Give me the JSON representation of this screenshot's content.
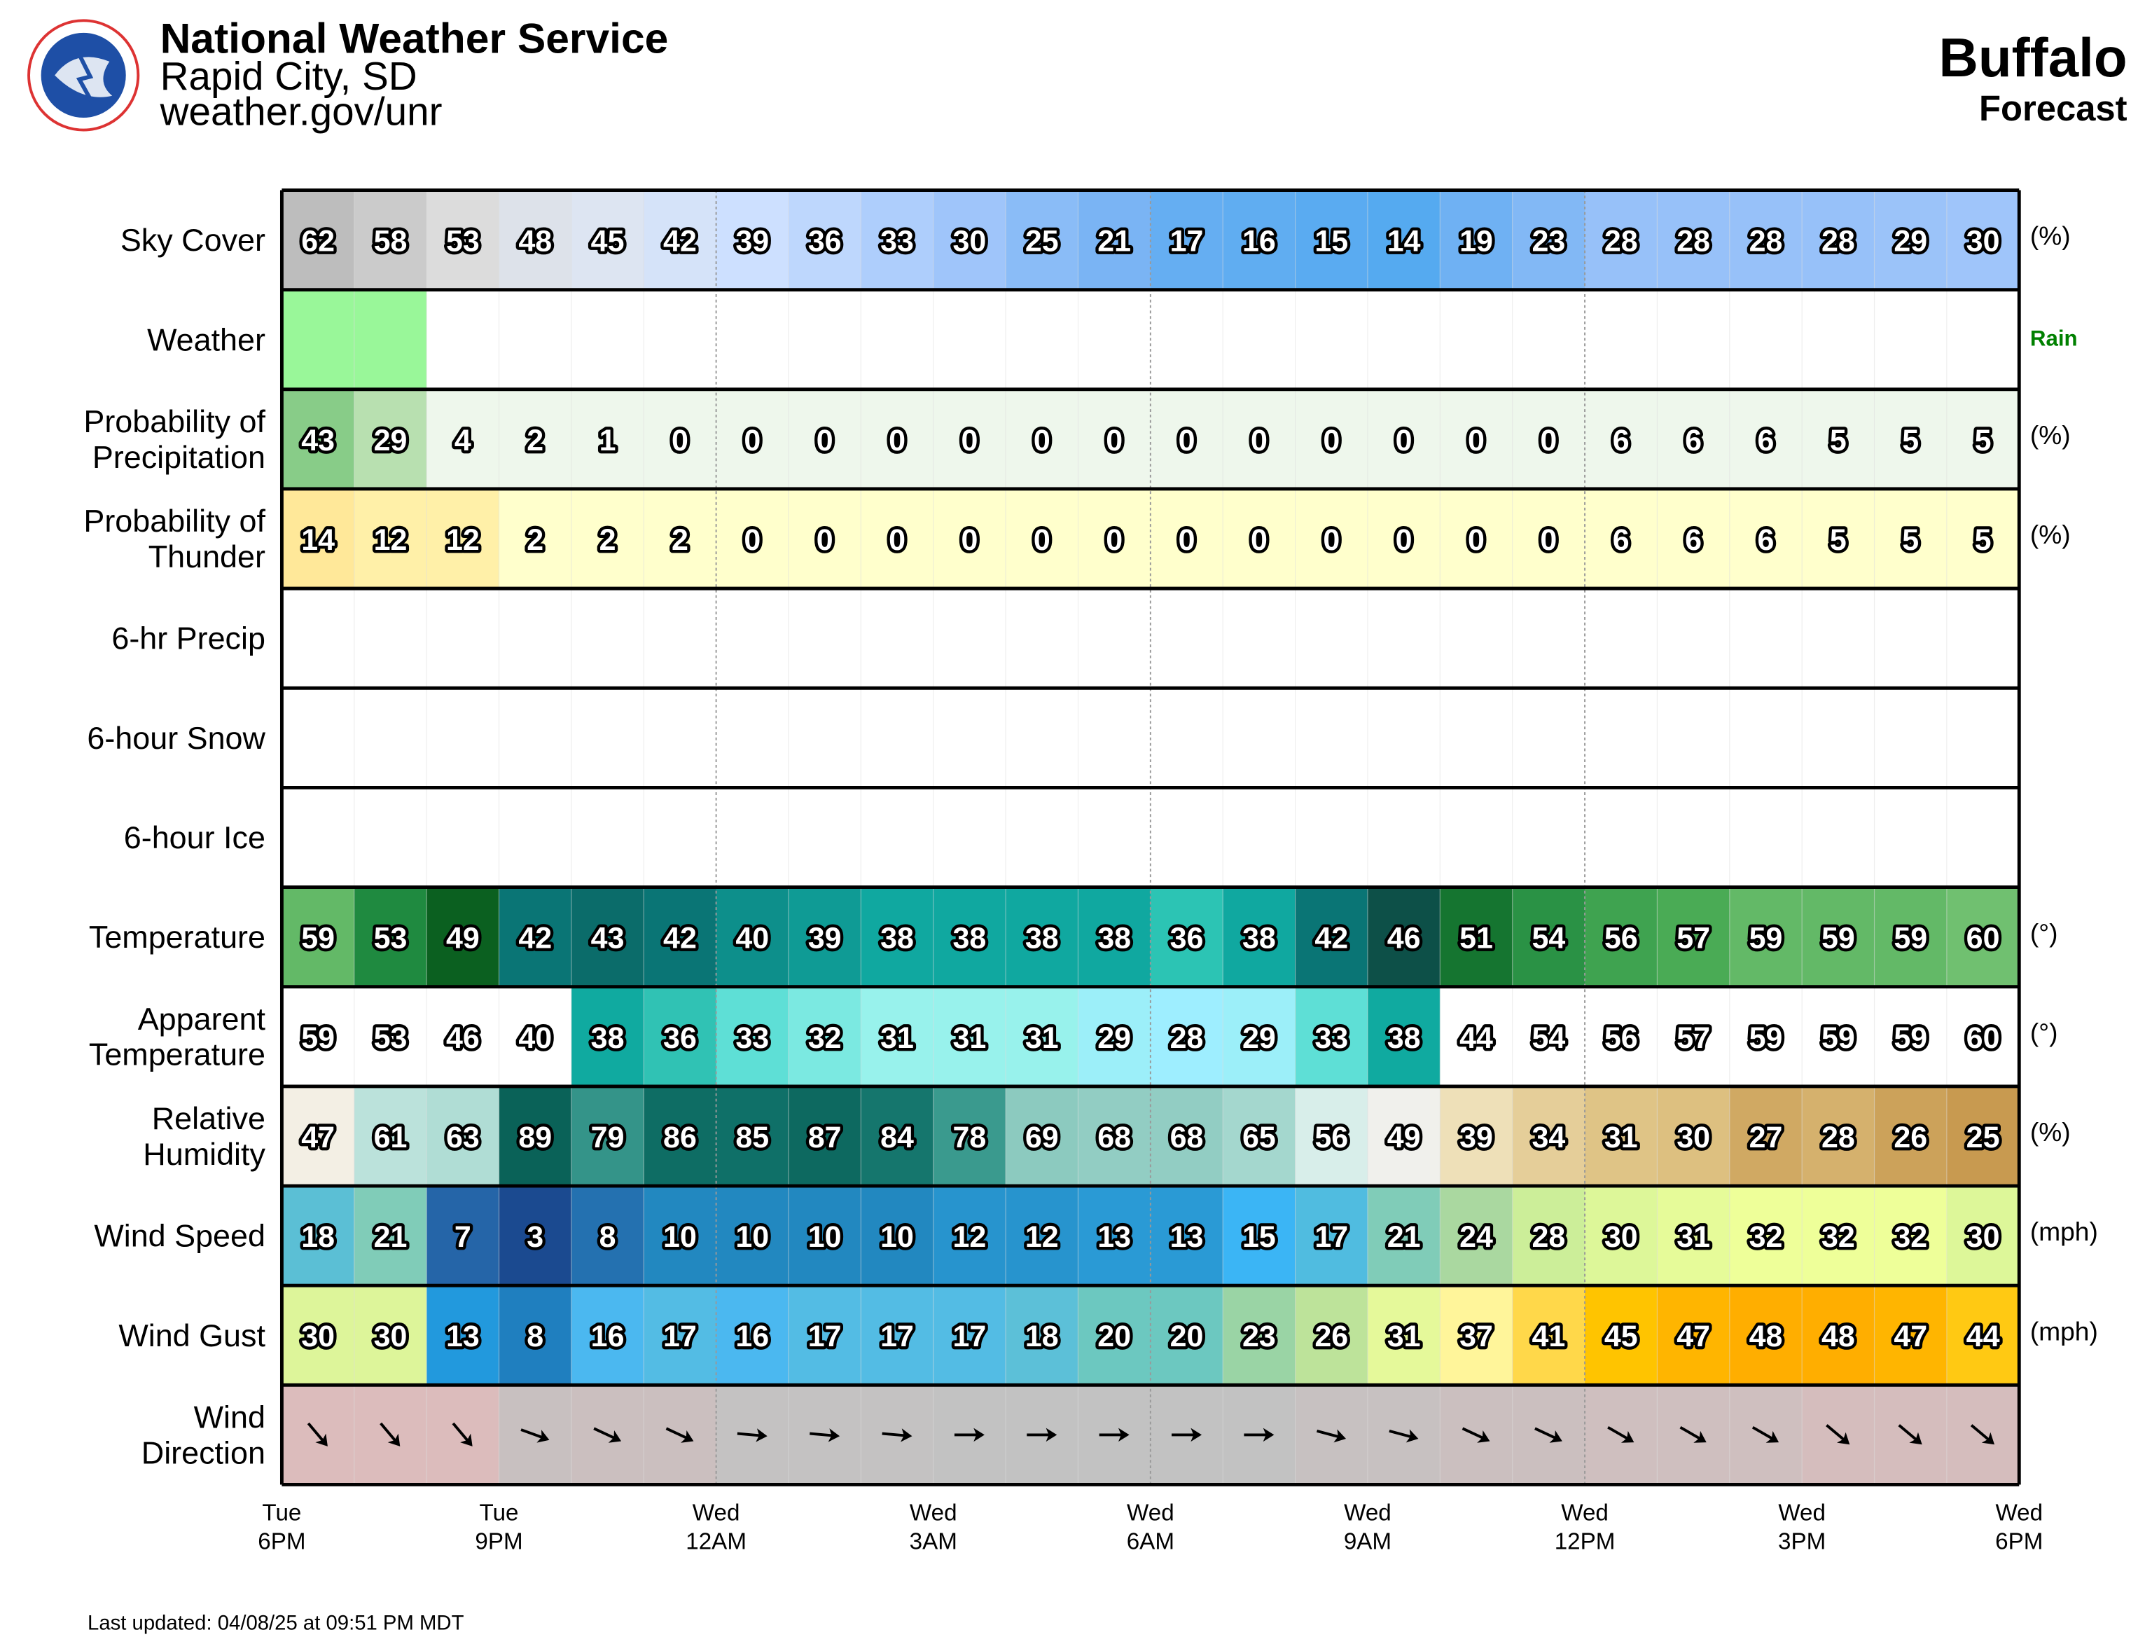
{
  "header": {
    "title": "National Weather Service",
    "office": "Rapid City, SD",
    "url": "weather.gov/unr",
    "location": "Buffalo",
    "subtitle": "Forecast"
  },
  "rows": [
    {
      "label": [
        "Sky Cover"
      ],
      "unit": "(%)",
      "kind": "number",
      "scale": "sky",
      "values": [
        62,
        58,
        53,
        48,
        45,
        42,
        39,
        36,
        33,
        30,
        25,
        21,
        17,
        16,
        15,
        14,
        19,
        23,
        28,
        28,
        28,
        28,
        29,
        30
      ]
    },
    {
      "label": [
        "Weather"
      ],
      "kind": "weather",
      "key": "Rain",
      "key_color": "#008000",
      "cell_color": "#99f799",
      "cells": [
        "Rain",
        "Rain",
        null,
        null,
        null,
        null,
        null,
        null,
        null,
        null,
        null,
        null,
        null,
        null,
        null,
        null,
        null,
        null,
        null,
        null,
        null,
        null,
        null,
        null
      ]
    },
    {
      "label": [
        "Probability of",
        "Precipitation"
      ],
      "unit": "(%)",
      "kind": "number",
      "scale": "pop",
      "values": [
        43,
        29,
        4,
        2,
        1,
        0,
        0,
        0,
        0,
        0,
        0,
        0,
        0,
        0,
        0,
        0,
        0,
        0,
        6,
        6,
        6,
        5,
        5,
        5
      ]
    },
    {
      "label": [
        "Probability of",
        "Thunder"
      ],
      "unit": "(%)",
      "kind": "number",
      "scale": "thunder",
      "values": [
        14,
        12,
        12,
        2,
        2,
        2,
        0,
        0,
        0,
        0,
        0,
        0,
        0,
        0,
        0,
        0,
        0,
        0,
        6,
        6,
        6,
        5,
        5,
        5
      ]
    },
    {
      "label": [
        "6-hr Precip"
      ],
      "kind": "empty"
    },
    {
      "label": [
        "6-hour Snow"
      ],
      "kind": "empty"
    },
    {
      "label": [
        "6-hour Ice"
      ],
      "kind": "empty"
    },
    {
      "label": [
        "Temperature"
      ],
      "unit": "(°)",
      "kind": "number",
      "scale": "temp",
      "values": [
        59,
        53,
        49,
        42,
        43,
        42,
        40,
        39,
        38,
        38,
        38,
        38,
        36,
        38,
        42,
        46,
        51,
        54,
        56,
        57,
        59,
        59,
        59,
        60
      ]
    },
    {
      "label": [
        "Apparent",
        "Temperature"
      ],
      "unit": "(°)",
      "kind": "number",
      "scale": "apparent",
      "values": [
        59,
        53,
        46,
        40,
        38,
        36,
        33,
        32,
        31,
        31,
        31,
        29,
        28,
        29,
        33,
        38,
        44,
        54,
        56,
        57,
        59,
        59,
        59,
        60
      ]
    },
    {
      "label": [
        "Relative",
        "Humidity"
      ],
      "unit": "(%)",
      "kind": "number",
      "scale": "rh",
      "values": [
        47,
        61,
        63,
        89,
        79,
        86,
        85,
        87,
        84,
        78,
        69,
        68,
        68,
        65,
        56,
        49,
        39,
        34,
        31,
        30,
        27,
        28,
        26,
        25
      ]
    },
    {
      "label": [
        "Wind Speed"
      ],
      "unit": "(mph)",
      "kind": "number",
      "scale": "wind",
      "values": [
        18,
        21,
        7,
        3,
        8,
        10,
        10,
        10,
        10,
        12,
        12,
        13,
        13,
        15,
        17,
        21,
        24,
        28,
        30,
        31,
        32,
        32,
        32,
        30
      ]
    },
    {
      "label": [
        "Wind Gust"
      ],
      "unit": "(mph)",
      "kind": "number",
      "scale": "gust",
      "values": [
        30,
        30,
        13,
        8,
        16,
        17,
        16,
        17,
        17,
        17,
        18,
        20,
        20,
        23,
        26,
        31,
        37,
        41,
        45,
        47,
        48,
        48,
        47,
        44
      ]
    },
    {
      "label": [
        "Wind",
        "Direction"
      ],
      "kind": "direction",
      "direction_deg": [
        320,
        320,
        320,
        290,
        295,
        295,
        275,
        275,
        275,
        270,
        270,
        270,
        270,
        270,
        285,
        285,
        295,
        295,
        300,
        300,
        300,
        310,
        310,
        310
      ]
    }
  ],
  "time_labels": [
    [
      "Tue",
      "6PM"
    ],
    [
      "Tue",
      "9PM"
    ],
    [
      "Wed",
      "12AM"
    ],
    [
      "Wed",
      "3AM"
    ],
    [
      "Wed",
      "6AM"
    ],
    [
      "Wed",
      "9AM"
    ],
    [
      "Wed",
      "12PM"
    ],
    [
      "Wed",
      "3PM"
    ],
    [
      "Wed",
      "6PM"
    ]
  ],
  "footer": "Last updated: 04/08/25 at 09:51 PM MDT"
}
